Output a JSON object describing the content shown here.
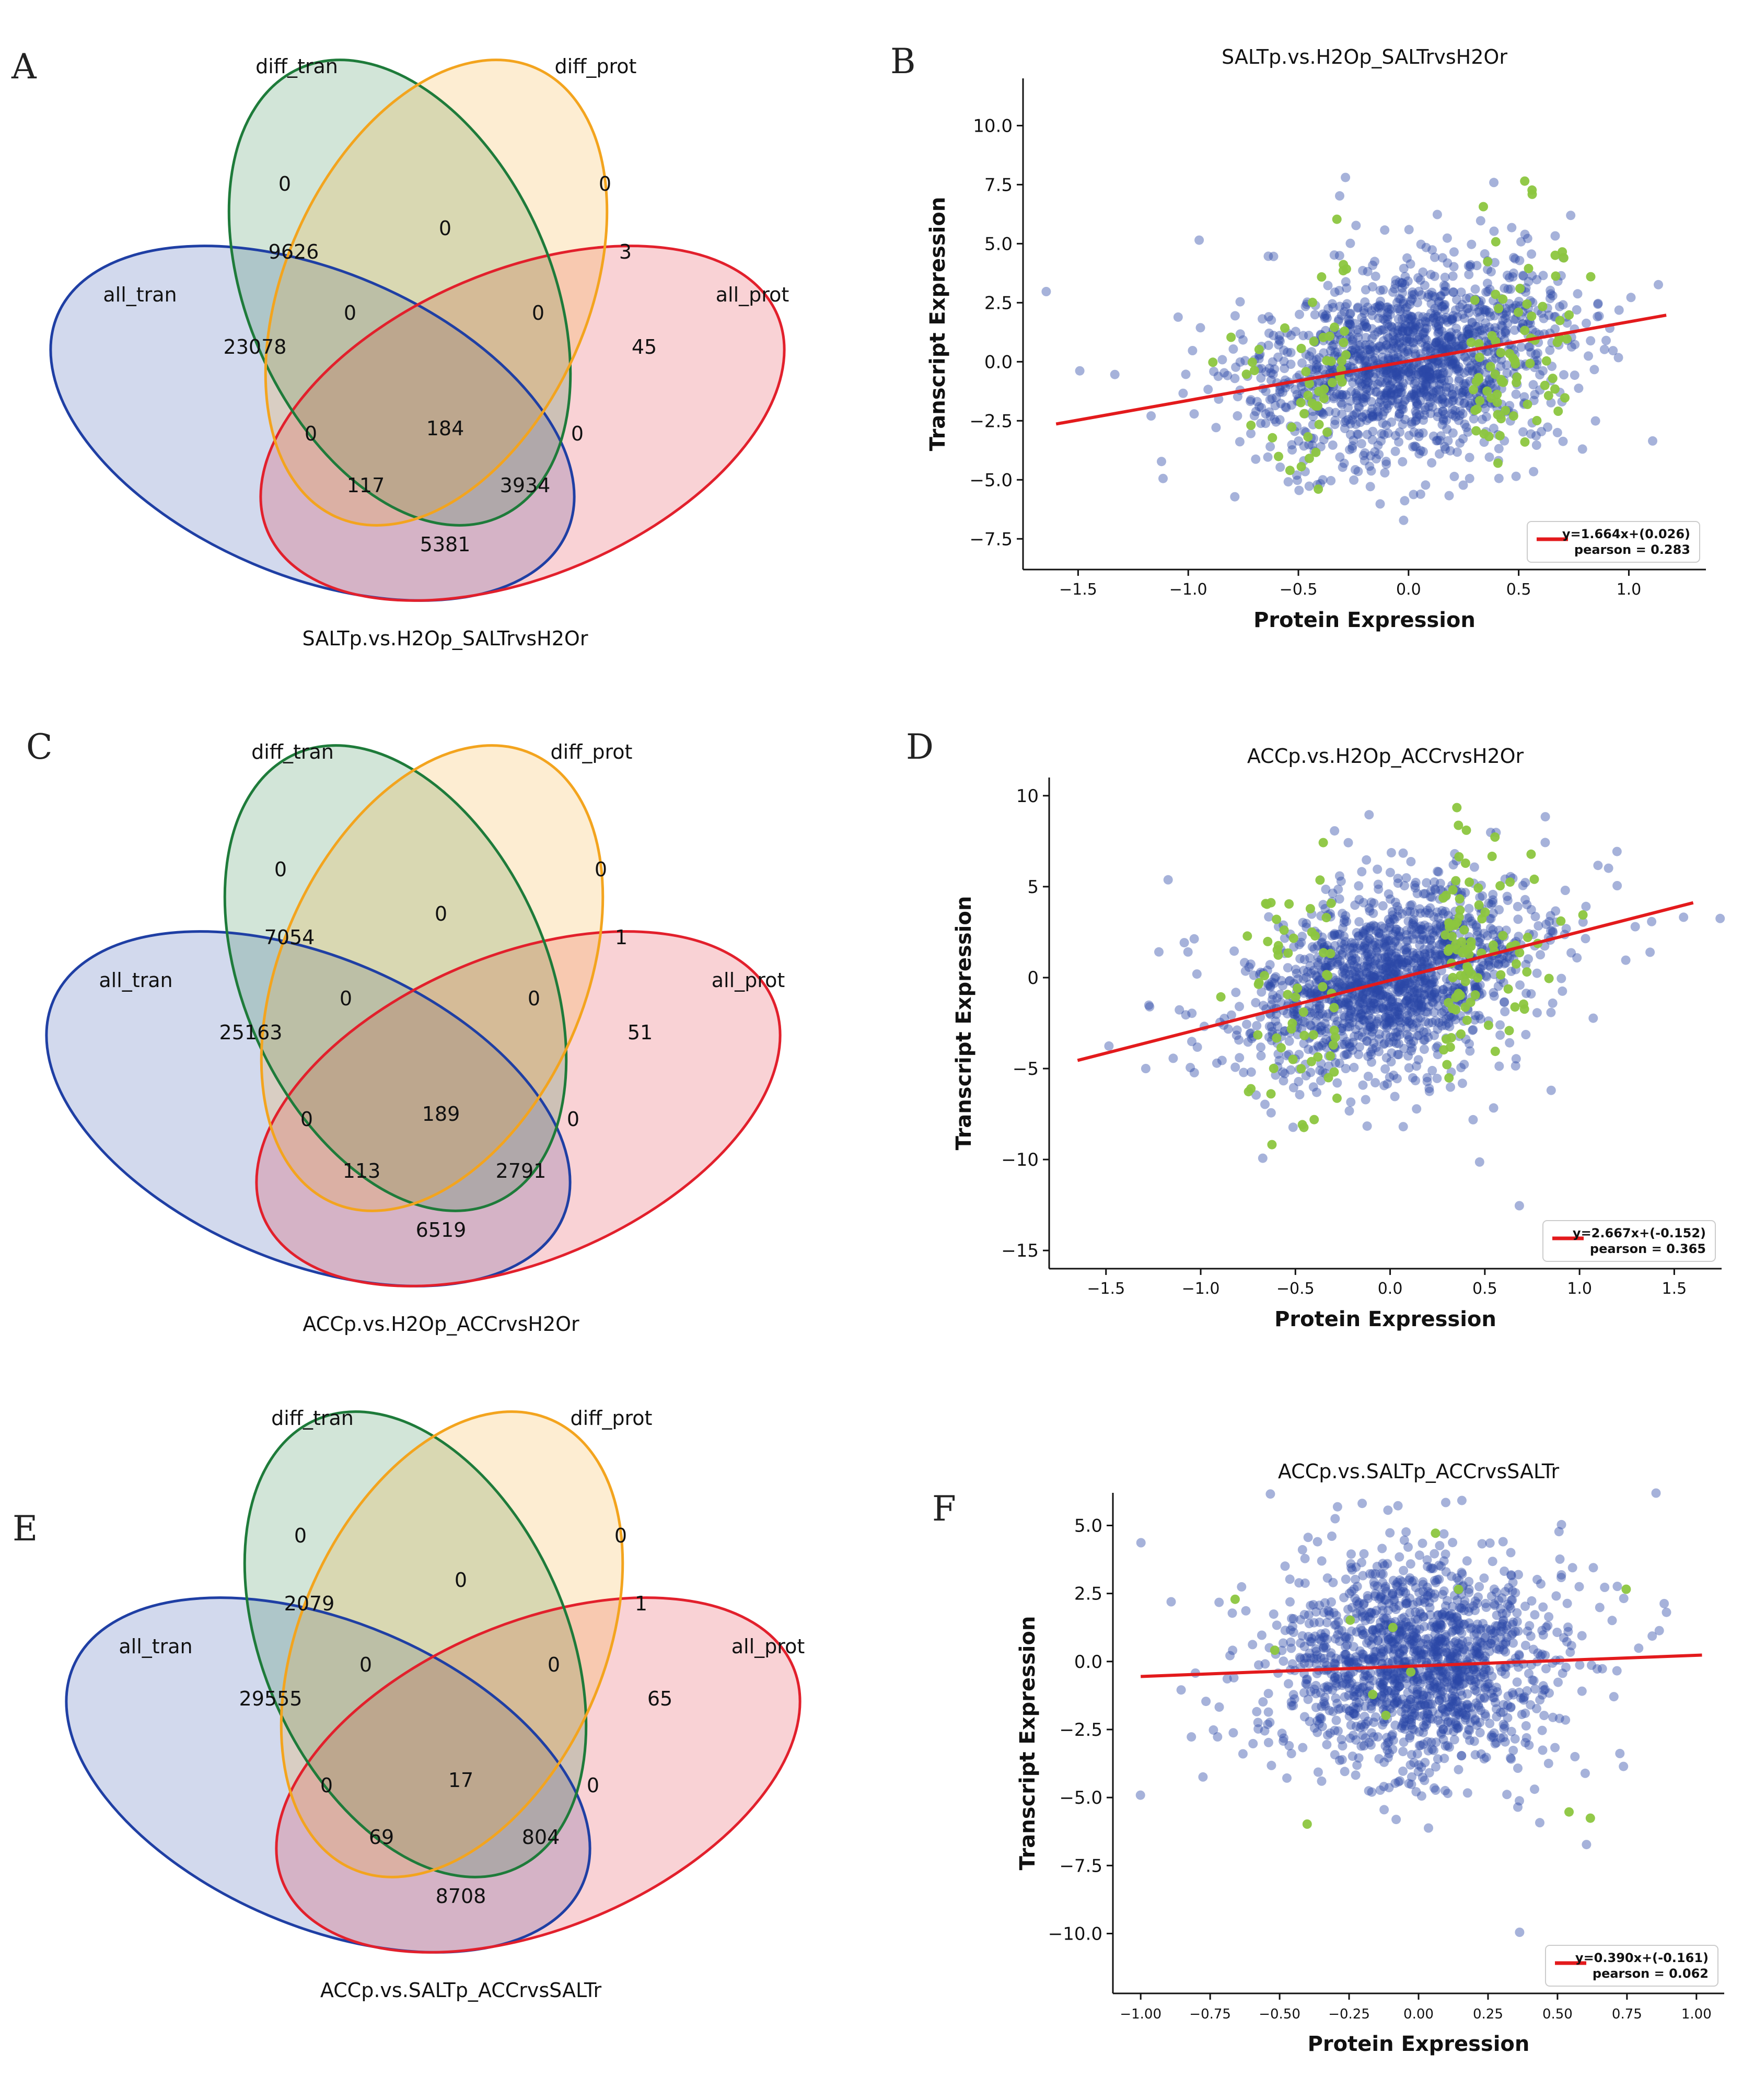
{
  "colors": {
    "green": "#1e7b3a",
    "orange": "#f3a41e",
    "blue": "#1f3fa4",
    "red": "#e2202c",
    "scatter": "#2b48a6",
    "highlight": "#8cc63f",
    "fit": "#e31a1c"
  },
  "panels": {
    "A": {
      "letter": "A"
    },
    "B": {
      "letter": "B"
    },
    "C": {
      "letter": "C"
    },
    "D": {
      "letter": "D"
    },
    "E": {
      "letter": "E"
    },
    "F": {
      "letter": "F"
    }
  },
  "chart_data": [
    {
      "type": "venn",
      "panel": "A",
      "title": "SALTp.vs.H2Op_SALTrvsH2Or",
      "sets": [
        "diff_tran",
        "diff_prot",
        "all_tran",
        "all_prot"
      ],
      "regions": {
        "diff_tran_only": "0",
        "diff_prot_only": "0",
        "diff_tran_diff_prot": "0",
        "all_tran_diff_tran": "9626",
        "diff_prot_all_prot": "3",
        "all_tran_diff_tran_diff_prot": "0",
        "diff_tran_diff_prot_all_prot": "0",
        "all_tran_only": "23078",
        "all_prot_only": "45",
        "all_tran_diff_prot_left": "0",
        "all_four": "184",
        "diff_tran_all_prot_right": "0",
        "all_tran_diff_prot_all_prot": "117",
        "all_tran_diff_tran_all_prot": "3934",
        "all_tran_all_prot": "5381"
      }
    },
    {
      "type": "scatter",
      "panel": "B",
      "title": "SALTp.vs.H2Op_SALTrvsH2Or",
      "xlabel": "Protein Expression",
      "ylabel": "Transcript Expression",
      "xticks": [
        -1.5,
        -1.0,
        -0.5,
        0.0,
        0.5,
        1.0
      ],
      "yticks": [
        -7.5,
        -5.0,
        -2.5,
        0.0,
        2.5,
        5.0,
        7.5,
        10.0
      ],
      "xtick_labels": [
        "−1.5",
        "−1.0",
        "−0.5",
        "0.0",
        "0.5",
        "1.0"
      ],
      "ytick_labels": [
        "−7.5",
        "−5.0",
        "−2.5",
        "0.0",
        "2.5",
        "5.0",
        "7.5",
        "10.0"
      ],
      "xlim": [
        -1.75,
        1.35
      ],
      "ylim": [
        -8.8,
        12.0
      ],
      "fit": {
        "slope": 1.664,
        "intercept": 0.026,
        "x_range": [
          -1.6,
          1.17
        ]
      },
      "legend_line1": "y=1.664x+(0.026)",
      "legend_line2": "pearson = 0.283",
      "cloud": {
        "sx": 0.34,
        "sy": 2.0,
        "rho": 0.28,
        "n": 1500,
        "seed": 11
      },
      "green_cluster": {
        "n": 130,
        "seed": 21
      }
    },
    {
      "type": "venn",
      "panel": "C",
      "title": "ACCp.vs.H2Op_ACCrvsH2Or",
      "sets": [
        "diff_tran",
        "diff_prot",
        "all_tran",
        "all_prot"
      ],
      "regions": {
        "diff_tran_only": "0",
        "diff_prot_only": "0",
        "diff_tran_diff_prot": "0",
        "all_tran_diff_tran": "7054",
        "diff_prot_all_prot": "1",
        "all_tran_diff_tran_diff_prot": "0",
        "diff_tran_diff_prot_all_prot": "0",
        "all_tran_only": "25163",
        "all_prot_only": "51",
        "all_tran_diff_prot_left": "0",
        "all_four": "189",
        "diff_tran_all_prot_right": "0",
        "all_tran_diff_prot_all_prot": "113",
        "all_tran_diff_tran_all_prot": "2791",
        "all_tran_all_prot": "6519"
      }
    },
    {
      "type": "scatter",
      "panel": "D",
      "title": "ACCp.vs.H2Op_ACCrvsH2Or",
      "xlabel": "Protein Expression",
      "ylabel": "Transcript Expression",
      "xticks": [
        -1.5,
        -1.0,
        -0.5,
        0.0,
        0.5,
        1.0,
        1.5
      ],
      "yticks": [
        -15,
        -10,
        -5,
        0,
        5,
        10
      ],
      "xtick_labels": [
        "−1.5",
        "−1.0",
        "−0.5",
        "0.0",
        "0.5",
        "1.0",
        "1.5"
      ],
      "ytick_labels": [
        "−15",
        "−10",
        "−5",
        "0",
        "5",
        "10"
      ],
      "xlim": [
        -1.8,
        1.75
      ],
      "ylim": [
        -16.0,
        11.0
      ],
      "fit": {
        "slope": 2.667,
        "intercept": -0.152,
        "x_range": [
          -1.65,
          1.6
        ]
      },
      "legend_line1": "y=2.667x+(-0.152)",
      "legend_line2": "pearson = 0.365",
      "cloud": {
        "sx": 0.36,
        "sy": 2.6,
        "rho": 0.36,
        "n": 1500,
        "seed": 33
      },
      "green_cluster": {
        "n": 150,
        "seed": 44
      }
    },
    {
      "type": "venn",
      "panel": "E",
      "title": "ACCp.vs.SALTp_ACCrvsSALTr",
      "sets": [
        "diff_tran",
        "diff_prot",
        "all_tran",
        "all_prot"
      ],
      "regions": {
        "diff_tran_only": "0",
        "diff_prot_only": "0",
        "diff_tran_diff_prot": "0",
        "all_tran_diff_tran": "2079",
        "diff_prot_all_prot": "1",
        "all_tran_diff_tran_diff_prot": "0",
        "diff_tran_diff_prot_all_prot": "0",
        "all_tran_only": "29555",
        "all_prot_only": "65",
        "all_tran_diff_prot_left": "0",
        "all_four": "17",
        "diff_tran_all_prot_right": "0",
        "all_tran_diff_prot_all_prot": "69",
        "all_tran_diff_tran_all_prot": "804",
        "all_tran_all_prot": "8708"
      }
    },
    {
      "type": "scatter",
      "panel": "F",
      "title": "ACCp.vs.SALTp_ACCrvsSALTr",
      "xlabel": "Protein Expression",
      "ylabel": "Transcript Expression",
      "xticks": [
        -1.0,
        -0.75,
        -0.5,
        -0.25,
        0.0,
        0.25,
        0.5,
        0.75,
        1.0
      ],
      "yticks": [
        -10.0,
        -7.5,
        -5.0,
        -2.5,
        0.0,
        2.5,
        5.0
      ],
      "xtick_labels": [
        "−1.00",
        "−0.75",
        "−0.50",
        "−0.25",
        "0.00",
        "0.25",
        "0.50",
        "0.75",
        "1.00"
      ],
      "ytick_labels": [
        "−10.0",
        "−7.5",
        "−5.0",
        "−2.5",
        "0.0",
        "2.5",
        "5.0"
      ],
      "xlim": [
        -1.1,
        1.1
      ],
      "ylim": [
        -12.2,
        6.2
      ],
      "fit": {
        "slope": 0.39,
        "intercept": -0.161,
        "x_range": [
          -1.0,
          1.02
        ]
      },
      "legend_line1": "y=0.390x+(-0.161)",
      "legend_line2": "pearson = 0.062",
      "cloud": {
        "sx": 0.24,
        "sy": 1.9,
        "rho": 0.06,
        "n": 1500,
        "seed": 55
      },
      "green_cluster": {
        "n": 14,
        "seed": 66
      }
    }
  ]
}
